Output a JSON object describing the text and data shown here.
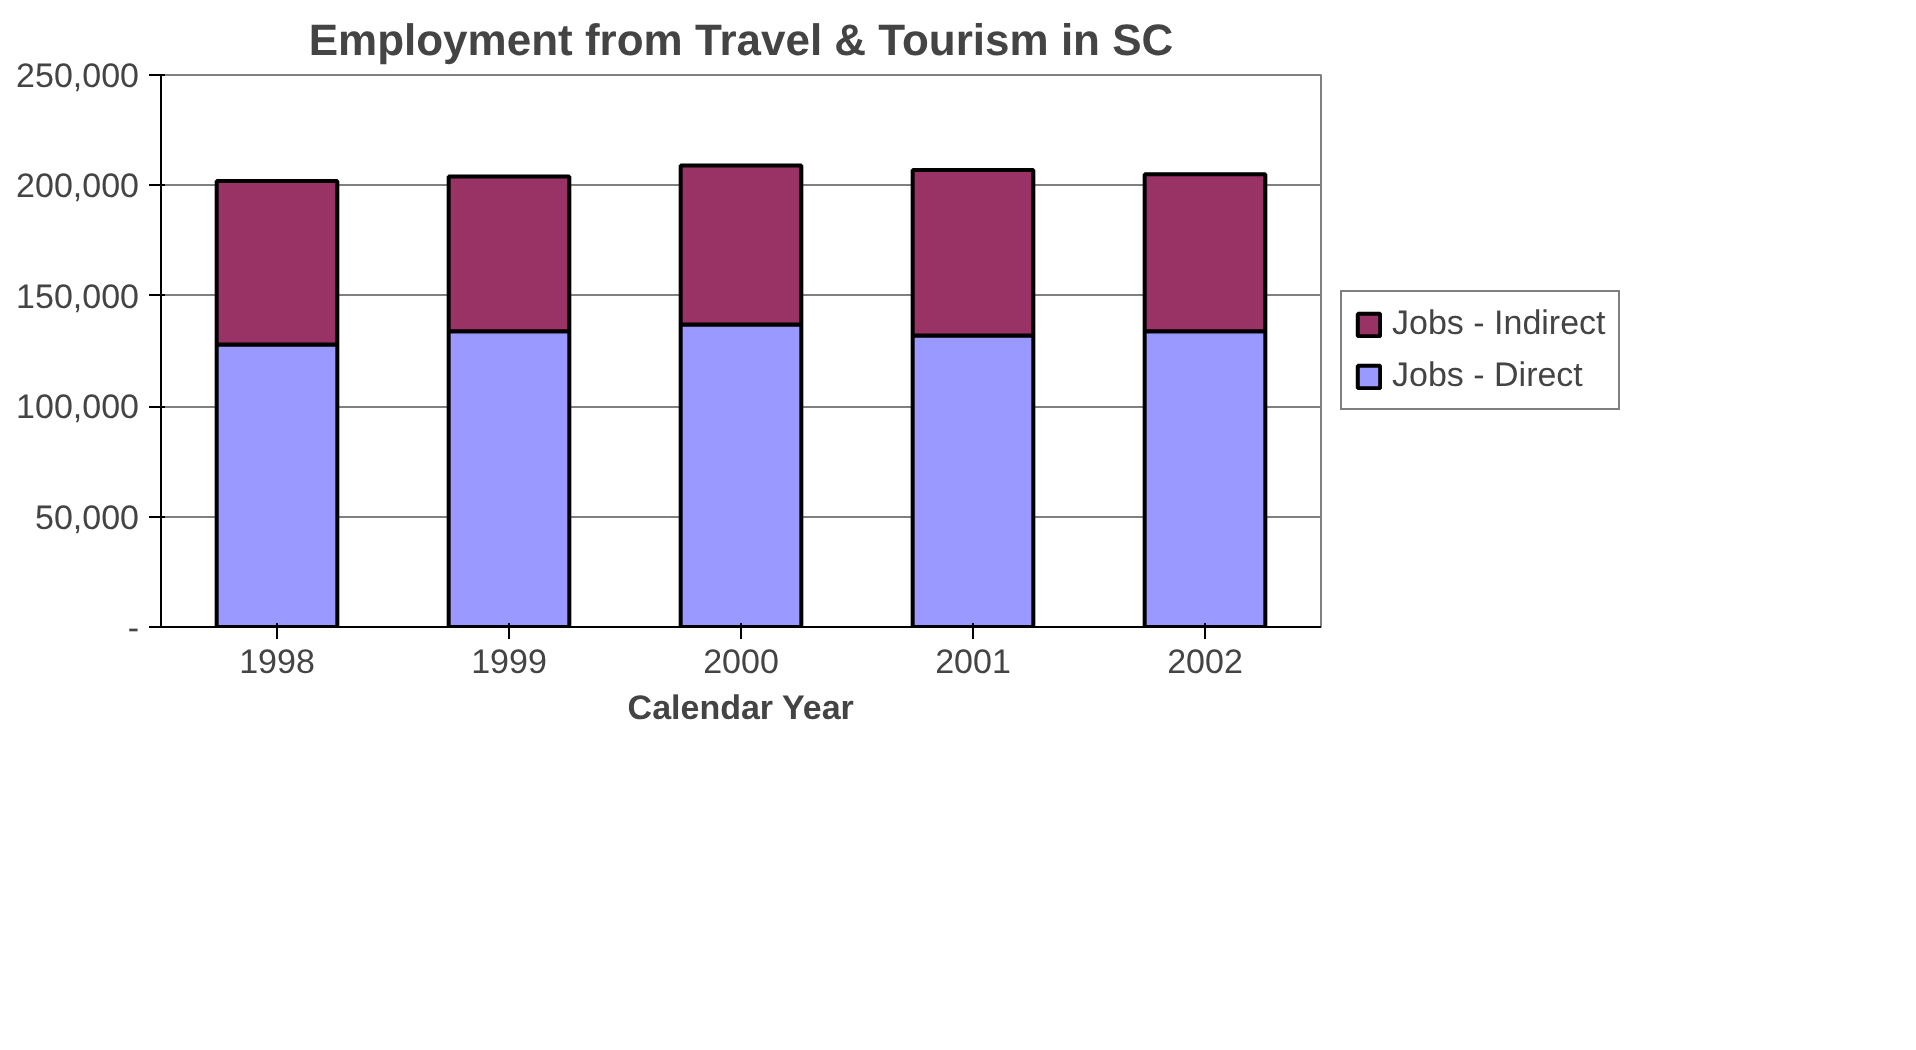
{
  "chart_data": {
    "type": "bar",
    "title": "Employment from Travel & Tourism in SC",
    "xlabel": "Calendar Year",
    "categories": [
      "1998",
      "1999",
      "2000",
      "2001",
      "2002"
    ],
    "stacked": true,
    "series": [
      {
        "name": "Jobs - Direct",
        "color": "#9999ff",
        "values": [
          128000,
          134000,
          137000,
          132000,
          134000
        ]
      },
      {
        "name": "Jobs - Indirect",
        "color": "#993366",
        "values": [
          74000,
          70000,
          72000,
          75000,
          71000
        ]
      }
    ],
    "ylim": [
      0,
      250000
    ],
    "yticks": [
      {
        "value": 0,
        "label": "-"
      },
      {
        "value": 50000,
        "label": "50,000"
      },
      {
        "value": 100000,
        "label": "100,000"
      },
      {
        "value": 150000,
        "label": "150,000"
      },
      {
        "value": 200000,
        "label": "200,000"
      },
      {
        "value": 250000,
        "label": "250,000"
      }
    ],
    "grid": "y",
    "legend": "right"
  }
}
